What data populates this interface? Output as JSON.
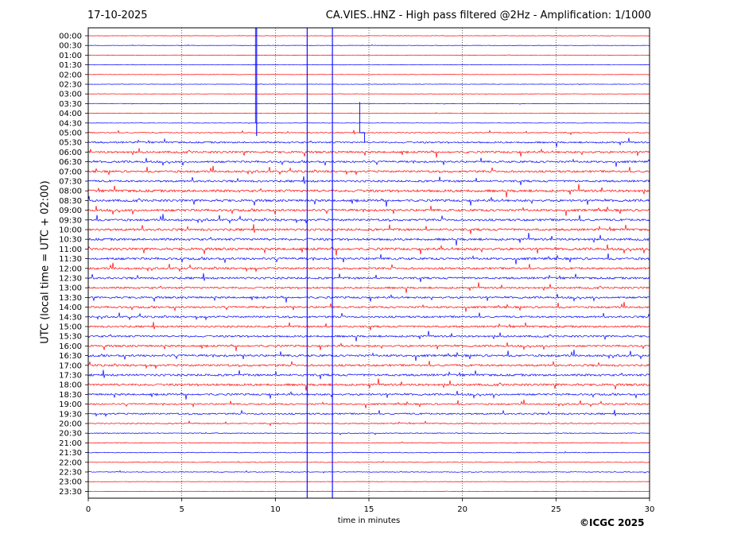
{
  "header": {
    "date": "17-10-2025",
    "title": "CA.VIES..HNZ - High pass filtered @2Hz - Amplification: 1/1000"
  },
  "footer": {
    "copyright": "©ICGC 2025"
  },
  "chart_data": {
    "type": "line",
    "chart_kind": "helicorder seismogram",
    "xlabel": "time in minutes",
    "ylabel": "UTC (local time = UTC + 02:00)",
    "xlim": [
      0,
      30
    ],
    "xticks": [
      "0",
      "5",
      "10",
      "15",
      "20",
      "25",
      "30"
    ],
    "x_gridlines": [
      5,
      10,
      15,
      20,
      25
    ],
    "grid": "vertical dotted",
    "trace_colors": [
      "#ff0000",
      "#0000ff"
    ],
    "rows": [
      {
        "time": "00:00",
        "level": 0.15,
        "color": "#ff0000"
      },
      {
        "time": "00:30",
        "level": 0.15,
        "color": "#0000ff"
      },
      {
        "time": "01:00",
        "level": 0.12,
        "color": "#ff0000"
      },
      {
        "time": "01:30",
        "level": 0.12,
        "color": "#0000ff"
      },
      {
        "time": "02:00",
        "level": 0.12,
        "color": "#ff0000"
      },
      {
        "time": "02:30",
        "level": 0.15,
        "color": "#0000ff"
      },
      {
        "time": "03:00",
        "level": 0.15,
        "color": "#ff0000"
      },
      {
        "time": "03:30",
        "level": 0.2,
        "color": "#0000ff"
      },
      {
        "time": "04:00",
        "level": 0.2,
        "color": "#ff0000"
      },
      {
        "time": "04:30",
        "level": 0.15,
        "color": "#0000ff"
      },
      {
        "time": "05:00",
        "level": 0.35,
        "color": "#ff0000"
      },
      {
        "time": "05:30",
        "level": 0.6,
        "color": "#0000ff"
      },
      {
        "time": "06:00",
        "level": 0.75,
        "color": "#ff0000"
      },
      {
        "time": "06:30",
        "level": 0.75,
        "color": "#0000ff"
      },
      {
        "time": "07:00",
        "level": 0.75,
        "color": "#ff0000"
      },
      {
        "time": "07:30",
        "level": 0.75,
        "color": "#0000ff"
      },
      {
        "time": "08:00",
        "level": 0.9,
        "color": "#ff0000"
      },
      {
        "time": "08:30",
        "level": 0.85,
        "color": "#0000ff"
      },
      {
        "time": "09:00",
        "level": 0.85,
        "color": "#ff0000"
      },
      {
        "time": "09:30",
        "level": 0.8,
        "color": "#0000ff"
      },
      {
        "time": "10:00",
        "level": 0.85,
        "color": "#ff0000"
      },
      {
        "time": "10:30",
        "level": 0.85,
        "color": "#0000ff"
      },
      {
        "time": "11:00",
        "level": 0.9,
        "color": "#ff0000"
      },
      {
        "time": "11:30",
        "level": 0.85,
        "color": "#0000ff"
      },
      {
        "time": "12:00",
        "level": 0.75,
        "color": "#ff0000"
      },
      {
        "time": "12:30",
        "level": 0.75,
        "color": "#0000ff"
      },
      {
        "time": "13:00",
        "level": 0.7,
        "color": "#ff0000"
      },
      {
        "time": "13:30",
        "level": 0.7,
        "color": "#0000ff"
      },
      {
        "time": "14:00",
        "level": 0.7,
        "color": "#ff0000"
      },
      {
        "time": "14:30",
        "level": 0.7,
        "color": "#0000ff"
      },
      {
        "time": "15:00",
        "level": 0.7,
        "color": "#ff0000"
      },
      {
        "time": "15:30",
        "level": 0.7,
        "color": "#0000ff"
      },
      {
        "time": "16:00",
        "level": 0.7,
        "color": "#ff0000"
      },
      {
        "time": "16:30",
        "level": 0.8,
        "color": "#0000ff"
      },
      {
        "time": "17:00",
        "level": 0.75,
        "color": "#ff0000"
      },
      {
        "time": "17:30",
        "level": 0.8,
        "color": "#0000ff"
      },
      {
        "time": "18:00",
        "level": 0.8,
        "color": "#ff0000"
      },
      {
        "time": "18:30",
        "level": 0.7,
        "color": "#0000ff"
      },
      {
        "time": "19:00",
        "level": 0.6,
        "color": "#ff0000"
      },
      {
        "time": "19:30",
        "level": 0.6,
        "color": "#0000ff"
      },
      {
        "time": "20:00",
        "level": 0.4,
        "color": "#ff0000"
      },
      {
        "time": "20:30",
        "level": 0.3,
        "color": "#0000ff"
      },
      {
        "time": "21:00",
        "level": 0.3,
        "color": "#ff0000"
      },
      {
        "time": "21:30",
        "level": 0.3,
        "color": "#0000ff"
      },
      {
        "time": "22:00",
        "level": 0.25,
        "color": "#ff0000"
      },
      {
        "time": "22:30",
        "level": 0.25,
        "color": "#0000ff"
      },
      {
        "time": "23:00",
        "level": 0.15,
        "color": "#ff0000"
      },
      {
        "time": "23:30",
        "level": 0.1,
        "color": "#ff0000"
      }
    ],
    "events": [
      {
        "time": "00:00",
        "minute": 9.0,
        "color": "#0000ff",
        "kind": "large spike"
      },
      {
        "time": "00:00",
        "minute": 11.7,
        "color": "#0000ff",
        "kind": "large spike"
      },
      {
        "time": "00:00",
        "minute": 13.05,
        "color": "#0000ff",
        "kind": "large spike"
      },
      {
        "time": "03:30",
        "minute": 14.6,
        "color": "#0000ff",
        "kind": "step"
      }
    ]
  }
}
